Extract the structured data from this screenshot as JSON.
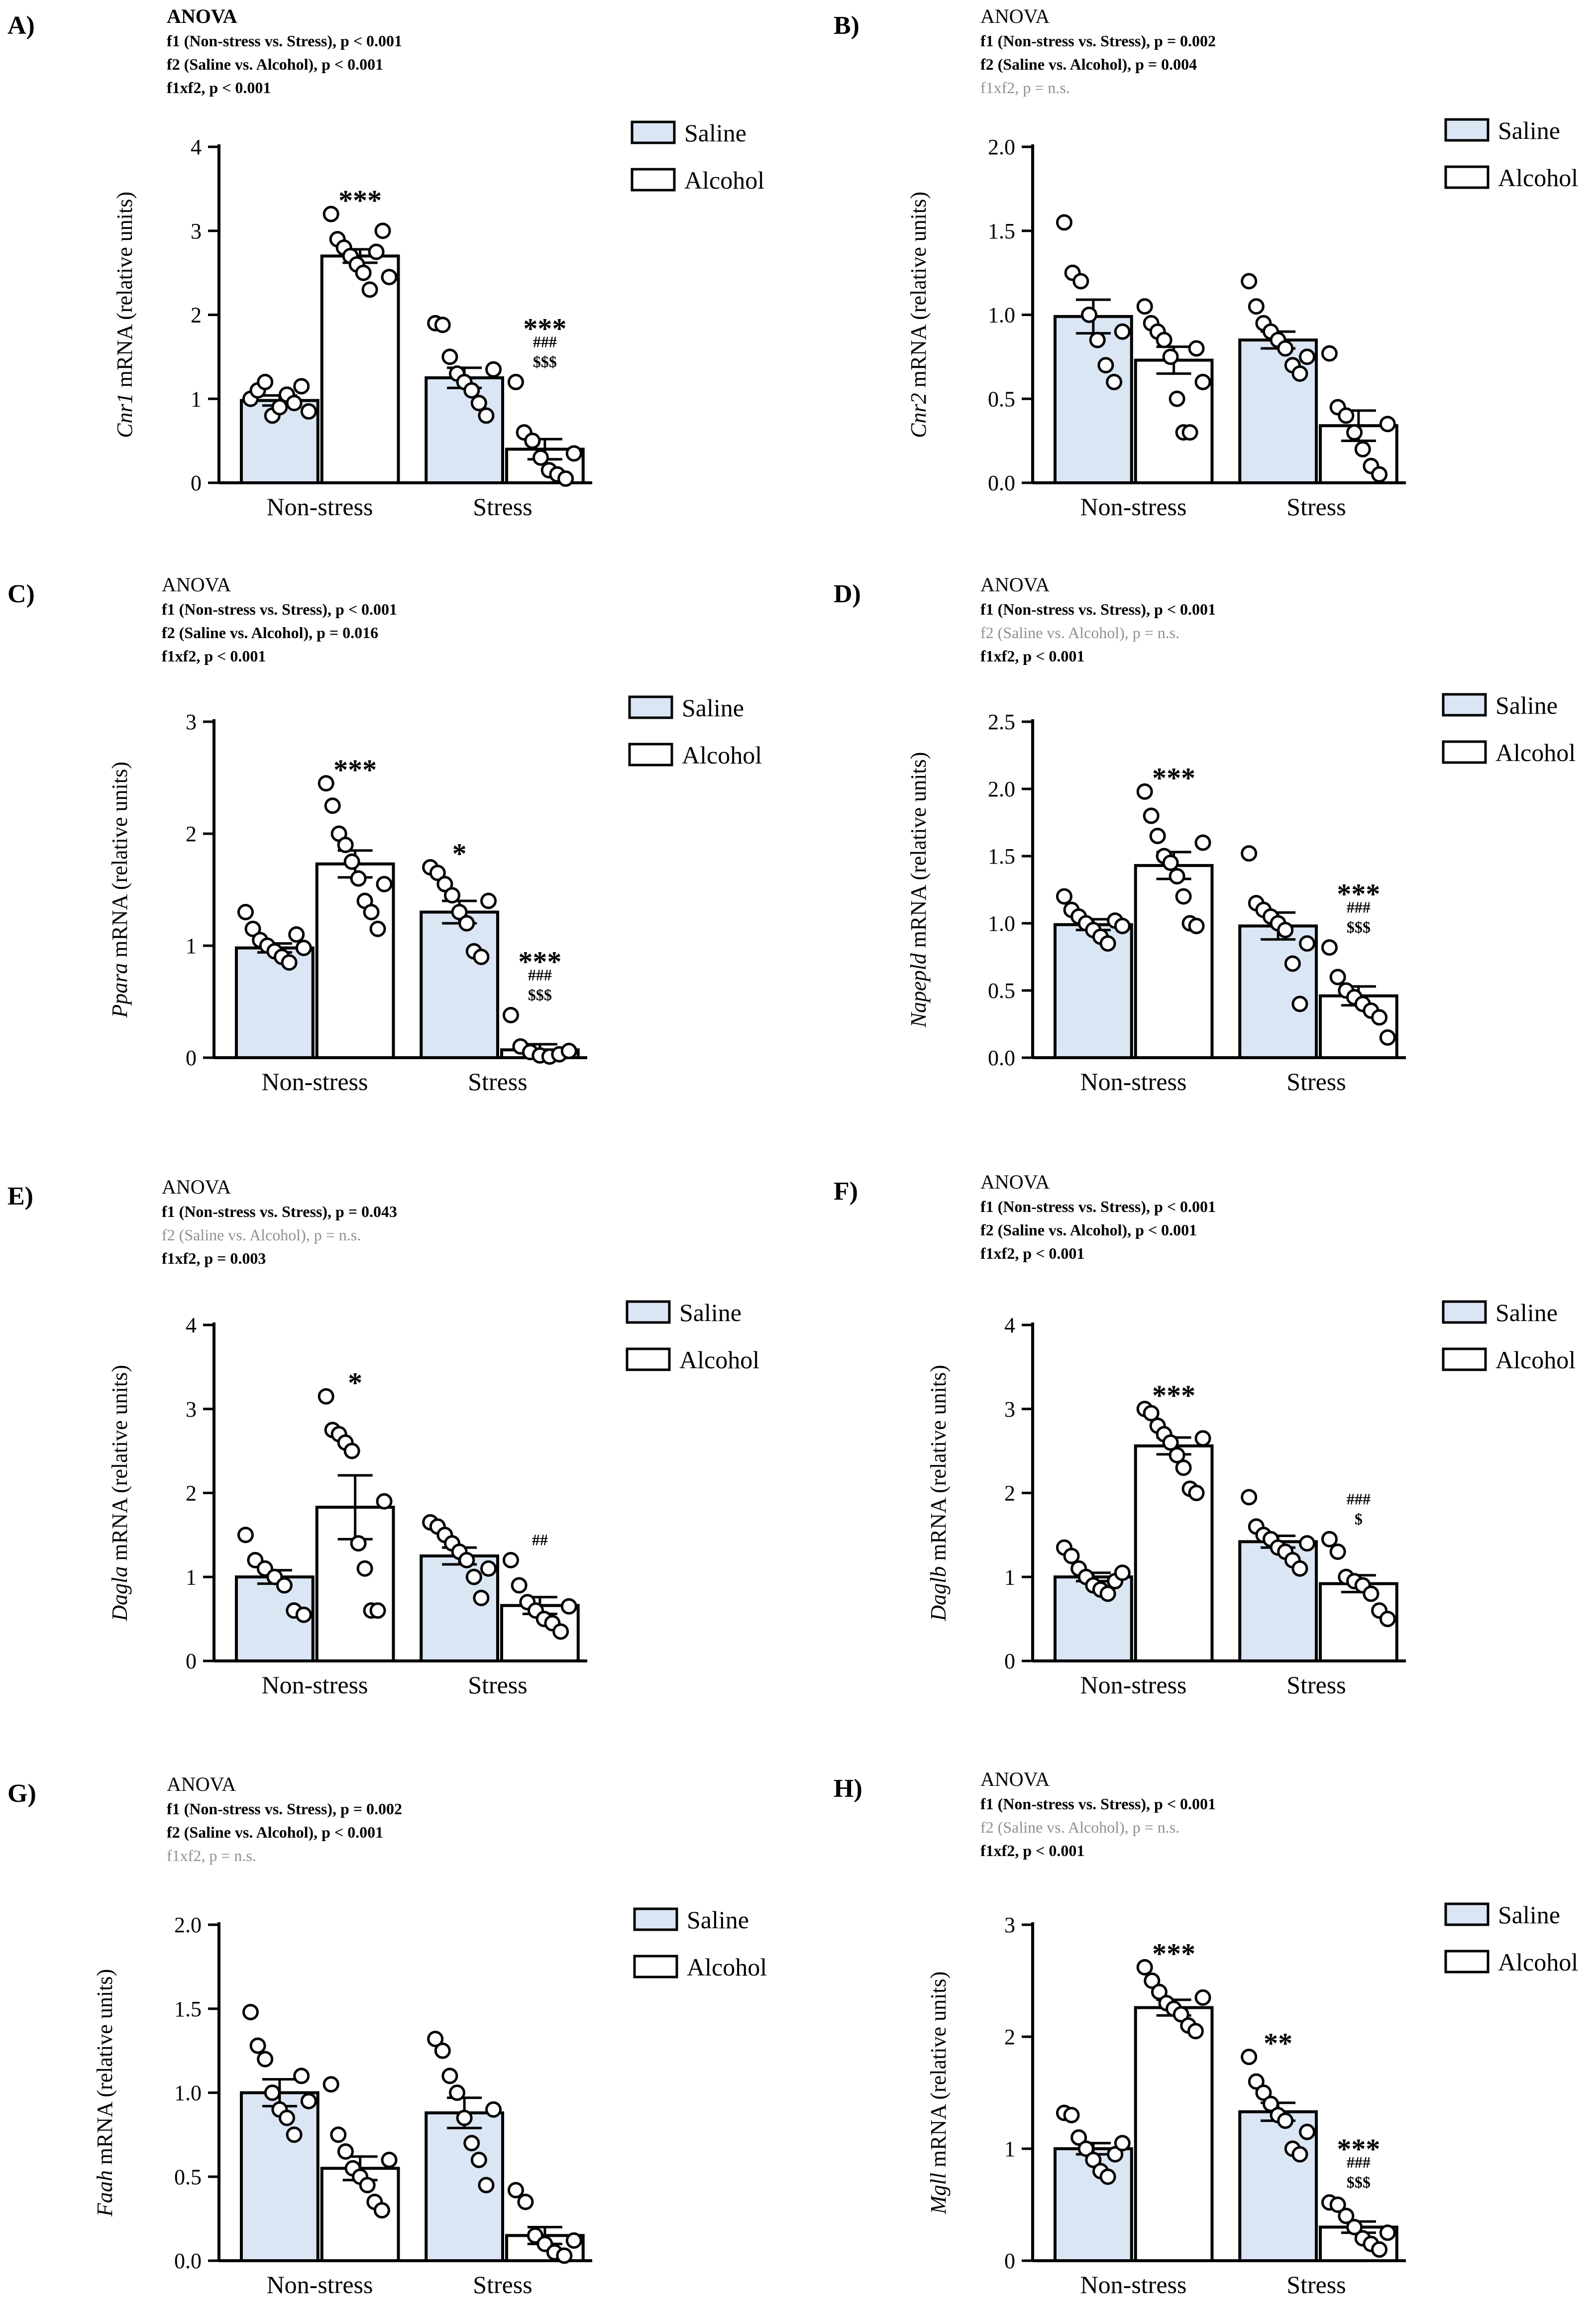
{
  "figure": {
    "groups": [
      "Non-stress",
      "Stress"
    ],
    "legend": [
      "Saline",
      "Alcohol"
    ],
    "colors": {
      "saline": "#dbe6f4",
      "alcohol": "#ffffff",
      "stroke": "#000000",
      "gray": "#909090"
    }
  },
  "chart_data": [
    {
      "panel": "A)",
      "type": "bar",
      "gene": "Cnr1",
      "ylabel_suffix": " mRNA (relative units)",
      "anova_title": "ANOVA",
      "title_bold": true,
      "anova": [
        {
          "text": "f1 (Non-stress vs. Stress), p < 0.001",
          "gray": false
        },
        {
          "text": "f2 (Saline vs. Alcohol), p < 0.001",
          "gray": false
        },
        {
          "text": "f1xf2, p < 0.001",
          "gray": false
        }
      ],
      "ylim": [
        0,
        4
      ],
      "yticks": [
        "0",
        "1",
        "2",
        "3",
        "4"
      ],
      "series": [
        {
          "name": "Saline",
          "means": [
            0.98,
            1.25
          ],
          "sem": [
            0.06,
            0.12
          ],
          "points": [
            [
              1.0,
              1.1,
              1.2,
              0.8,
              0.9,
              1.05,
              0.95,
              1.15,
              0.85
            ],
            [
              1.9,
              1.88,
              1.5,
              1.3,
              1.2,
              1.1,
              0.95,
              0.8,
              1.35
            ]
          ]
        },
        {
          "name": "Alcohol",
          "means": [
            2.7,
            0.4
          ],
          "sem": [
            0.08,
            0.12
          ],
          "points": [
            [
              3.2,
              2.9,
              2.8,
              2.7,
              2.6,
              2.5,
              2.3,
              2.75,
              3.0,
              2.45
            ],
            [
              1.2,
              0.6,
              0.5,
              0.3,
              0.15,
              0.1,
              0.05,
              0.35
            ]
          ]
        }
      ],
      "annotations": [
        {
          "series": 1,
          "group": 0,
          "lines": [
            "***"
          ]
        },
        {
          "series": 1,
          "group": 1,
          "lines": [
            "***",
            "###",
            "$$$"
          ]
        }
      ]
    },
    {
      "panel": "B)",
      "type": "bar",
      "gene": "Cnr2",
      "ylabel_suffix": " mRNA (relative units)",
      "anova_title": "ANOVA",
      "title_bold": false,
      "anova": [
        {
          "text": "f1 (Non-stress vs. Stress), p = 0.002",
          "gray": false
        },
        {
          "text": "f2 (Saline vs. Alcohol), p = 0.004",
          "gray": false
        },
        {
          "text": "f1xf2, p = n.s.",
          "gray": true
        }
      ],
      "ylim": [
        0,
        2
      ],
      "yticks": [
        "0.0",
        "0.5",
        "1.0",
        "1.5",
        "2.0"
      ],
      "series": [
        {
          "name": "Saline",
          "means": [
            0.99,
            0.85
          ],
          "sem": [
            0.1,
            0.05
          ],
          "points": [
            [
              1.55,
              1.25,
              1.2,
              1.0,
              0.85,
              0.7,
              0.6,
              0.9
            ],
            [
              1.2,
              1.05,
              0.95,
              0.9,
              0.85,
              0.8,
              0.7,
              0.65,
              0.75
            ]
          ]
        },
        {
          "name": "Alcohol",
          "means": [
            0.73,
            0.34
          ],
          "sem": [
            0.08,
            0.09
          ],
          "points": [
            [
              1.05,
              0.95,
              0.9,
              0.85,
              0.75,
              0.5,
              0.3,
              0.3,
              0.8,
              0.6
            ],
            [
              0.77,
              0.45,
              0.4,
              0.3,
              0.2,
              0.1,
              0.05,
              0.35
            ]
          ]
        }
      ],
      "annotations": []
    },
    {
      "panel": "C)",
      "type": "bar",
      "gene": "Ppara",
      "ylabel_suffix": " mRNA (relative units)",
      "anova_title": "ANOVA",
      "title_bold": false,
      "anova": [
        {
          "text": "f1 (Non-stress vs. Stress), p < 0.001",
          "gray": false
        },
        {
          "text": "f2 (Saline vs. Alcohol), p = 0.016",
          "gray": false
        },
        {
          "text": "f1xf2, p < 0.001",
          "gray": false
        }
      ],
      "ylim": [
        0,
        3
      ],
      "yticks": [
        "0",
        "1",
        "2",
        "3"
      ],
      "series": [
        {
          "name": "Saline",
          "means": [
            0.98,
            1.3
          ],
          "sem": [
            0.04,
            0.1
          ],
          "points": [
            [
              1.3,
              1.15,
              1.05,
              1.0,
              0.95,
              0.9,
              0.85,
              1.1,
              0.98
            ],
            [
              1.7,
              1.65,
              1.55,
              1.45,
              1.3,
              1.2,
              0.95,
              0.9,
              1.4
            ]
          ]
        },
        {
          "name": "Alcohol",
          "means": [
            1.73,
            0.07
          ],
          "sem": [
            0.12,
            0.05
          ],
          "points": [
            [
              2.45,
              2.25,
              2.0,
              1.9,
              1.75,
              1.6,
              1.4,
              1.3,
              1.15,
              1.55
            ],
            [
              0.38,
              0.1,
              0.05,
              0.02,
              0.01,
              0.03,
              0.06
            ]
          ]
        }
      ],
      "annotations": [
        {
          "series": 1,
          "group": 0,
          "lines": [
            "***"
          ]
        },
        {
          "series": 0,
          "group": 1,
          "lines": [
            "*"
          ]
        },
        {
          "series": 1,
          "group": 1,
          "lines": [
            "***",
            "###",
            "$$$"
          ]
        }
      ]
    },
    {
      "panel": "D)",
      "type": "bar",
      "gene": "Napepld",
      "ylabel_suffix": " mRNA (relative units)",
      "anova_title": "ANOVA",
      "title_bold": false,
      "anova": [
        {
          "text": "f1 (Non-stress vs. Stress), p < 0.001",
          "gray": false
        },
        {
          "text": "f2 (Saline vs. Alcohol), p = n.s.",
          "gray": true
        },
        {
          "text": "f1xf2, p < 0.001",
          "gray": false
        }
      ],
      "ylim": [
        0,
        2.5
      ],
      "yticks": [
        "0.0",
        "0.5",
        "1.0",
        "1.5",
        "2.0",
        "2.5"
      ],
      "series": [
        {
          "name": "Saline",
          "means": [
            0.99,
            0.98
          ],
          "sem": [
            0.04,
            0.1
          ],
          "points": [
            [
              1.2,
              1.1,
              1.05,
              1.0,
              0.95,
              0.9,
              0.85,
              1.02,
              0.98
            ],
            [
              1.52,
              1.15,
              1.1,
              1.05,
              1.0,
              0.95,
              0.7,
              0.4,
              0.85
            ]
          ]
        },
        {
          "name": "Alcohol",
          "means": [
            1.43,
            0.46
          ],
          "sem": [
            0.1,
            0.07
          ],
          "points": [
            [
              1.98,
              1.8,
              1.65,
              1.5,
              1.45,
              1.35,
              1.2,
              1.0,
              0.98,
              1.6
            ],
            [
              0.82,
              0.6,
              0.5,
              0.45,
              0.4,
              0.35,
              0.3,
              0.15
            ]
          ]
        }
      ],
      "annotations": [
        {
          "series": 1,
          "group": 0,
          "lines": [
            "***"
          ]
        },
        {
          "series": 1,
          "group": 1,
          "lines": [
            "***",
            "###",
            "$$$"
          ]
        }
      ]
    },
    {
      "panel": "E)",
      "type": "bar",
      "gene": "Dagla",
      "ylabel_suffix": " mRNA (relative units)",
      "anova_title": "ANOVA",
      "title_bold": false,
      "anova": [
        {
          "text": "f1 (Non-stress vs. Stress), p = 0.043",
          "gray": false
        },
        {
          "text": "f2 (Saline vs. Alcohol), p = n.s.",
          "gray": true
        },
        {
          "text": "f1xf2, p = 0.003",
          "gray": false
        }
      ],
      "ylim": [
        0,
        4
      ],
      "yticks": [
        "0",
        "1",
        "2",
        "3",
        "4"
      ],
      "series": [
        {
          "name": "Saline",
          "means": [
            1.0,
            1.25
          ],
          "sem": [
            0.08,
            0.1
          ],
          "points": [
            [
              1.5,
              1.2,
              1.1,
              1.0,
              0.9,
              0.6,
              0.55
            ],
            [
              1.65,
              1.6,
              1.5,
              1.4,
              1.3,
              1.2,
              1.0,
              0.75,
              1.1
            ]
          ]
        },
        {
          "name": "Alcohol",
          "means": [
            1.83,
            0.66
          ],
          "sem": [
            0.38,
            0.1
          ],
          "points": [
            [
              3.15,
              2.75,
              2.7,
              2.6,
              2.5,
              1.4,
              1.1,
              0.6,
              0.6,
              1.9
            ],
            [
              1.2,
              0.9,
              0.7,
              0.6,
              0.5,
              0.45,
              0.35,
              0.65
            ]
          ]
        }
      ],
      "annotations": [
        {
          "series": 1,
          "group": 0,
          "lines": [
            "*"
          ]
        },
        {
          "series": 1,
          "group": 1,
          "lines": [
            "##"
          ]
        }
      ]
    },
    {
      "panel": "F)",
      "type": "bar",
      "gene": "Daglb",
      "ylabel_suffix": " mRNA (relative units)",
      "anova_title": "ANOVA",
      "title_bold": false,
      "anova": [
        {
          "text": "f1 (Non-stress vs. Stress), p < 0.001",
          "gray": false
        },
        {
          "text": "f2 (Saline vs. Alcohol), p < 0.001",
          "gray": false
        },
        {
          "text": "f1xf2, p < 0.001",
          "gray": false
        }
      ],
      "ylim": [
        0,
        4
      ],
      "yticks": [
        "0",
        "1",
        "2",
        "3",
        "4"
      ],
      "series": [
        {
          "name": "Saline",
          "means": [
            1.0,
            1.42
          ],
          "sem": [
            0.05,
            0.07
          ],
          "points": [
            [
              1.35,
              1.25,
              1.1,
              1.0,
              0.9,
              0.85,
              0.8,
              0.95,
              1.05
            ],
            [
              1.95,
              1.6,
              1.5,
              1.45,
              1.35,
              1.3,
              1.2,
              1.1,
              1.4
            ]
          ]
        },
        {
          "name": "Alcohol",
          "means": [
            2.56,
            0.92
          ],
          "sem": [
            0.1,
            0.1
          ],
          "points": [
            [
              3.0,
              2.95,
              2.8,
              2.7,
              2.6,
              2.45,
              2.3,
              2.05,
              2.0,
              2.65
            ],
            [
              1.45,
              1.3,
              1.0,
              0.95,
              0.9,
              0.8,
              0.6,
              0.5
            ]
          ]
        }
      ],
      "annotations": [
        {
          "series": 1,
          "group": 0,
          "lines": [
            "***"
          ]
        },
        {
          "series": 1,
          "group": 1,
          "lines": [
            "###",
            "$"
          ]
        }
      ]
    },
    {
      "panel": "G)",
      "type": "bar",
      "gene": "Faah",
      "ylabel_suffix": " mRNA (relative units)",
      "anova_title": "ANOVA",
      "title_bold": false,
      "anova": [
        {
          "text": "f1 (Non-stress vs. Stress), p = 0.002",
          "gray": false
        },
        {
          "text": "f2 (Saline vs. Alcohol), p < 0.001",
          "gray": false
        },
        {
          "text": "f1xf2, p = n.s.",
          "gray": true
        }
      ],
      "ylim": [
        0,
        2
      ],
      "yticks": [
        "0.0",
        "0.5",
        "1.0",
        "1.5",
        "2.0"
      ],
      "series": [
        {
          "name": "Saline",
          "means": [
            1.0,
            0.88
          ],
          "sem": [
            0.08,
            0.09
          ],
          "points": [
            [
              1.48,
              1.28,
              1.2,
              1.0,
              0.9,
              0.85,
              0.75,
              1.1,
              0.95
            ],
            [
              1.32,
              1.25,
              1.1,
              1.0,
              0.85,
              0.7,
              0.6,
              0.45,
              0.9
            ]
          ]
        },
        {
          "name": "Alcohol",
          "means": [
            0.55,
            0.15
          ],
          "sem": [
            0.07,
            0.05
          ],
          "points": [
            [
              1.05,
              0.75,
              0.65,
              0.55,
              0.5,
              0.45,
              0.35,
              0.3,
              0.6
            ],
            [
              0.42,
              0.35,
              0.15,
              0.1,
              0.05,
              0.03,
              0.12
            ]
          ]
        }
      ],
      "annotations": []
    },
    {
      "panel": "H)",
      "type": "bar",
      "gene": "Mgll",
      "ylabel_suffix": " mRNA (relative units)",
      "anova_title": "ANOVA",
      "title_bold": false,
      "anova": [
        {
          "text": "f1 (Non-stress vs. Stress), p < 0.001",
          "gray": false
        },
        {
          "text": "f2 (Saline vs. Alcohol), p = n.s.",
          "gray": true
        },
        {
          "text": "f1xf2, p < 0.001",
          "gray": false
        }
      ],
      "ylim": [
        0,
        3
      ],
      "yticks": [
        "0",
        "1",
        "2",
        "3"
      ],
      "series": [
        {
          "name": "Saline",
          "means": [
            1.0,
            1.33
          ],
          "sem": [
            0.05,
            0.08
          ],
          "points": [
            [
              1.32,
              1.3,
              1.1,
              1.0,
              0.9,
              0.8,
              0.75,
              0.95,
              1.05
            ],
            [
              1.82,
              1.6,
              1.5,
              1.4,
              1.3,
              1.25,
              1.0,
              0.95,
              1.15
            ]
          ]
        },
        {
          "name": "Alcohol",
          "means": [
            2.26,
            0.3
          ],
          "sem": [
            0.07,
            0.05
          ],
          "points": [
            [
              2.62,
              2.5,
              2.4,
              2.3,
              2.25,
              2.2,
              2.1,
              2.05,
              2.35
            ],
            [
              0.52,
              0.5,
              0.4,
              0.3,
              0.2,
              0.15,
              0.1,
              0.25
            ]
          ]
        }
      ],
      "annotations": [
        {
          "series": 1,
          "group": 0,
          "lines": [
            "***"
          ]
        },
        {
          "series": 0,
          "group": 1,
          "lines": [
            "**"
          ]
        },
        {
          "series": 1,
          "group": 1,
          "lines": [
            "***",
            "###",
            "$$$"
          ]
        }
      ]
    }
  ]
}
